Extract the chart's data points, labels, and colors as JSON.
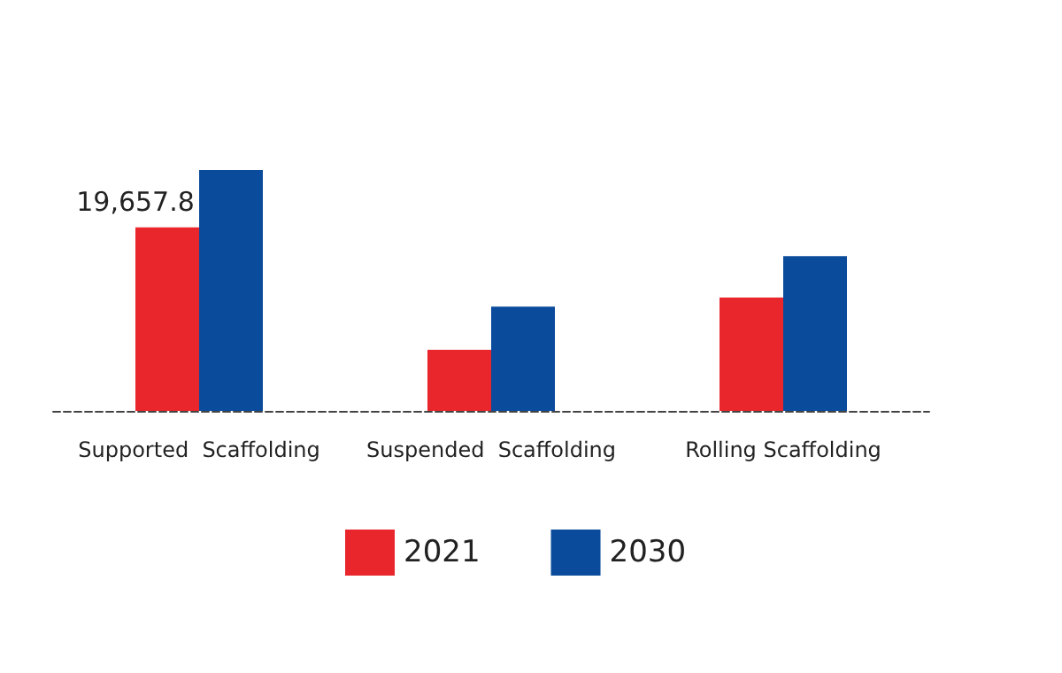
{
  "chart_data": {
    "type": "bar",
    "categories": [
      "Supported  Scaffolding",
      "Suspended  Scaffolding",
      "Rolling Scaffolding"
    ],
    "series": [
      {
        "name": "2021",
        "color": "#e8262c",
        "values": [
          19657.8,
          6550,
          12140
        ],
        "value_labels": [
          "19,657.8",
          null,
          null
        ]
      },
      {
        "name": "2030",
        "color": "#0b4b9b",
        "values": [
          25800,
          11180,
          16570
        ]
      }
    ],
    "ylim": [
      0,
      25800
    ],
    "tick_labels": false,
    "legend": "bottom"
  }
}
